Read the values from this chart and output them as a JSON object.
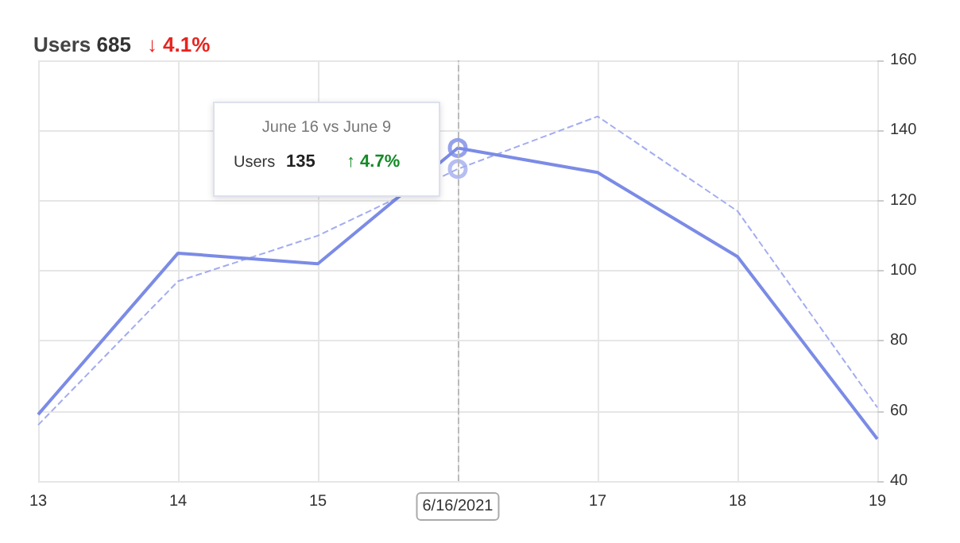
{
  "chart_data": {
    "type": "line",
    "title": "Users 685 ↓ 4.1%",
    "categories": [
      "13",
      "14",
      "15",
      "6/16/2021",
      "17",
      "18",
      "19"
    ],
    "series": [
      {
        "color": "#7b8be6",
        "line_style": "solid",
        "values": [
          59,
          105,
          102,
          135,
          128,
          104,
          52
        ]
      },
      {
        "color": "#a3acef",
        "line_style": "dashed",
        "values": [
          56,
          97,
          110,
          129,
          144,
          117,
          61
        ]
      }
    ],
    "ylim": [
      40,
      160
    ],
    "yticks": [
      40,
      60,
      80,
      100,
      120,
      140,
      160
    ],
    "grid": true,
    "marker": "none",
    "ref_lines": [
      {
        "axis": "x",
        "value": "6/16/2021",
        "color": "#bbbbbb",
        "line_style": "dashed"
      }
    ],
    "annotations": [
      "June 16 vs June 9",
      "Users 135 ↑ 4.7%"
    ]
  }
}
